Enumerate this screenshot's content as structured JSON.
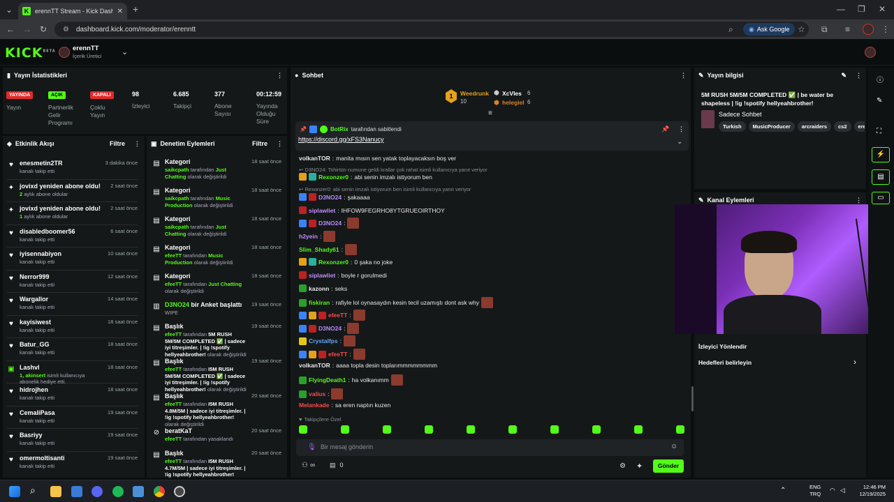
{
  "browser": {
    "tab_title": "erennTT Stream - Kick Dashboa",
    "url": "dashboard.kick.com/moderator/erenntt",
    "ask_google": "Ask Google"
  },
  "header": {
    "logo": "KICK",
    "logo_sup": "BETA",
    "channel_name": "erennTT",
    "channel_role": "İçerik Üretici"
  },
  "stats": {
    "title": "Yayın İstatistikleri",
    "items": [
      {
        "badge": "YAYINDA",
        "label": "Yayın"
      },
      {
        "badge": "AÇIK",
        "label": "Partnerlik Gelir Programı"
      },
      {
        "badge": "KAPALI",
        "label": "Çoklu Yayın"
      },
      {
        "value": "98",
        "label": "İzleyici"
      },
      {
        "value": "6.685",
        "label": "Takipçi"
      },
      {
        "value": "377",
        "label": "Abone Sayısı"
      },
      {
        "value": "00:12:59",
        "label": "Yayında Olduğu Süre"
      }
    ]
  },
  "activity": {
    "title": "Etkinlik Akışı",
    "filter": "Filtre",
    "items": [
      {
        "icon": "heart",
        "name": "enesmetin2TR",
        "sub": "kanalı takip etti",
        "time": "3 dakika önce"
      },
      {
        "icon": "sparkle",
        "name": "jovixd yeniden abone oldu!",
        "sub_green": "2",
        "sub": " aylık abone oldular",
        "time": "2 saat önce"
      },
      {
        "icon": "sparkle",
        "name": "jovixd yeniden abone oldu!",
        "sub_green": "1",
        "sub": " aylık abone oldular",
        "time": "2 saat önce"
      },
      {
        "icon": "heart",
        "name": "disabledboomer56",
        "sub": "kanalı takip etti",
        "time": "6 saat önce"
      },
      {
        "icon": "heart",
        "name": "iyisennabiyon",
        "sub": "kanalı takip etti",
        "time": "10 saat önce"
      },
      {
        "icon": "heart",
        "name": "Nerror999",
        "sub": "kanalı takip etti",
        "time": "12 saat önce"
      },
      {
        "icon": "heart",
        "name": "Wargallor",
        "sub": "kanalı takip etti",
        "time": "14 saat önce"
      },
      {
        "icon": "heart",
        "name": "kayisiwest",
        "sub": "kanalı takip etti",
        "time": "18 saat önce"
      },
      {
        "icon": "heart",
        "name": "Batur_GG",
        "sub": "kanalı takip etti",
        "time": "18 saat önce"
      },
      {
        "icon": "gift",
        "name": "Lashvl",
        "sub_green": "1, akinsert",
        "sub": " isimli kullanıcıya abonelik hediye etti.",
        "time": "18 saat önce"
      },
      {
        "icon": "heart",
        "name": "hidrojhen",
        "sub": "kanalı takip etti",
        "time": "18 saat önce"
      },
      {
        "icon": "heart",
        "name": "CemaliPasa",
        "sub": "kanalı takip etti",
        "time": "19 saat önce"
      },
      {
        "icon": "heart",
        "name": "Basriyy",
        "sub": "kanalı takip etti",
        "time": "19 saat önce"
      },
      {
        "icon": "heart",
        "name": "omermoltisanti",
        "sub": "kanalı takip etti",
        "time": "19 saat önce"
      }
    ]
  },
  "modlog": {
    "title": "Denetim Eylemleri",
    "filter": "Filtre",
    "items": [
      {
        "title": "Kategori",
        "user": "saikcpath",
        "mid": " tarafından ",
        "target": "Just Chatting",
        "end": " olarak değiştirildi",
        "time": "18 saat önce"
      },
      {
        "title": "Kategori",
        "user": "saikcpath",
        "mid": " tarafından ",
        "target": "Music Production",
        "end": " olarak değiştirildi",
        "time": "18 saat önce"
      },
      {
        "title": "Kategori",
        "user": "saikcpath",
        "mid": " tarafından ",
        "target": "Just Chatting",
        "end": " olarak değiştirildi",
        "time": "18 saat önce"
      },
      {
        "title": "Kategori",
        "user": "efeeTT",
        "mid": " tarafından ",
        "target": "Music Production",
        "end": " olarak değiştirildi",
        "time": "18 saat önce"
      },
      {
        "title": "Kategori",
        "user": "efeeTT",
        "mid": " tarafından ",
        "target": "Just Chatting",
        "end": " olarak değiştirildi",
        "time": "18 saat önce"
      },
      {
        "title_green": "D3NO24",
        "title": " bir Anket başlattı",
        "plain": "WIPE",
        "time": "19 saat önce"
      },
      {
        "title": "Başlık",
        "user": "efeeTT",
        "mid": " tarafından ",
        "bold": "5M RUSH 5M/5M COMPLETED ✅ | sadece iyi titreşimler. | !ig !spotify hellyeahbrother!",
        "end": " olarak değiştirildi",
        "time": "19 saat önce"
      },
      {
        "title": "Başlık",
        "user": "efeeTT",
        "mid": " tarafından ",
        "bold": "I5M RUSH 5M/5M COMPLETED ✅ | sadece iyi titreşimler. | !ig !spotify hellyeahbrother!",
        "end": " olarak değiştirildi",
        "time": "19 saat önce"
      },
      {
        "title": "Başlık",
        "user": "efeeTT",
        "mid": " tarafından ",
        "bold": "I5M RUSH 4.8M/5M | sadece iyi titreşimler. | !ig !spotify hellyeahbrother!",
        "end": " olarak değiştirildi",
        "time": "20 saat önce"
      },
      {
        "title": "beratKaT",
        "user": "efeeTT",
        "mid": " tarafından yasaklandı",
        "time": "20 saat önce"
      },
      {
        "title": "Başlık",
        "user": "efeeTT",
        "mid": " tarafından ",
        "bold": "I5M RUSH 4.7M/5M | sadece iyi titreşimler. | !ig !spotify hellyeahbrother!",
        "time": "20 saat önce"
      }
    ]
  },
  "chat": {
    "title": "Sohbet",
    "top_gifters": [
      {
        "rank": "1",
        "name": "Weedrunk",
        "count": "10"
      },
      {
        "name": "XcVles",
        "count": "6"
      },
      {
        "name": "helegiel",
        "count": "6"
      }
    ],
    "pinned_by": "BotRix",
    "pinned_suffix": "tarafından sabitlendi",
    "pinned_link": "https://discord.gg/xFS3Nanucy",
    "messages": [
      {
        "user": "volkanTOR",
        "color": "#e8e8e8",
        "text": "manita mısın sen yatak toplayacaksın boş ver"
      },
      {
        "reply": "D3NO24: Tshirtün numune geldi krallar çok rahat isimli kullanıcıya yanıt veriyor"
      },
      {
        "user": "Rexonzer0",
        "color": "#53fc18",
        "text": "abi senin imzalı istiyorum ben"
      },
      {
        "reply": "Rexonzer0: abi senin imzalı istiyorum ben isimli kullanıcıya yanıt veriyor"
      },
      {
        "user": "D3NO24",
        "color": "#b58cff",
        "text": "şakaaaa"
      },
      {
        "user": "siplawliet",
        "color": "#c18cff",
        "text": "IHFOW9FEGRHO8YTGRUEOIRTHOY"
      },
      {
        "user": "D3NO24",
        "color": "#b58cff",
        "text": ""
      },
      {
        "user": "h2yein",
        "color": "#c18cff",
        "text": ""
      },
      {
        "user": "Slim_Shady61",
        "color": "#53fc18",
        "text": ""
      },
      {
        "user": "Rexonzer0",
        "color": "#53fc18",
        "text": "0 şaka no joke"
      },
      {
        "user": "siplawliet",
        "color": "#c18cff",
        "text": "boyle r gorulmedi"
      },
      {
        "user": "kazonn",
        "color": "#e8e8e8",
        "text": "seks"
      },
      {
        "user": "fiskiran",
        "color": "#53fc18",
        "text": "rafiyle lol oynasaydın kesin tecil uzamıştı dont ask why"
      },
      {
        "user": "efeeTT",
        "color": "#ff4a4a",
        "text": ""
      },
      {
        "user": "D3NO24",
        "color": "#b58cff",
        "text": ""
      },
      {
        "user": "Crystalfps",
        "color": "#5fa8ff",
        "text": ""
      },
      {
        "user": "efeeTT",
        "color": "#ff4a4a",
        "text": ""
      },
      {
        "user": "volkanTOR",
        "color": "#e8e8e8",
        "text": "aaaa topla desin toplarımmmmmmmm"
      },
      {
        "user": "FlyingDeath1",
        "color": "#53fc18",
        "text": "ha volkanımm"
      },
      {
        "user": "valius",
        "color": "#ff4a4a",
        "text": ""
      },
      {
        "user": "Melankade",
        "color": "#ff4a4a",
        "text": "sa eren naptın kuzen"
      }
    ],
    "followers_only": "Takipçilere Özel",
    "input_placeholder": "Bir mesaj gönderin",
    "send": "Gönder",
    "viewer_icon_label": "∞",
    "count": "0"
  },
  "info": {
    "title": "Yayın bilgisi",
    "stream_title": "5M RUSH 5M/5M COMPLETED ✅ | be water be shapeless | !ig !spotify hellyeahbrother!",
    "category": "Sadece Sohbet",
    "tags": [
      "Turkish",
      "MusicProducer",
      "arcraiders",
      "cs2",
      "eren"
    ]
  },
  "channel_actions": {
    "title": "Kanal Eylemleri",
    "items": [
      "İzleyici Yönlendir",
      "Hedefleri belirleyin"
    ]
  },
  "taskbar": {
    "lang": "ENG",
    "lang2": "TRQ",
    "time": "12:46 PM",
    "date": "12/19/2025"
  }
}
